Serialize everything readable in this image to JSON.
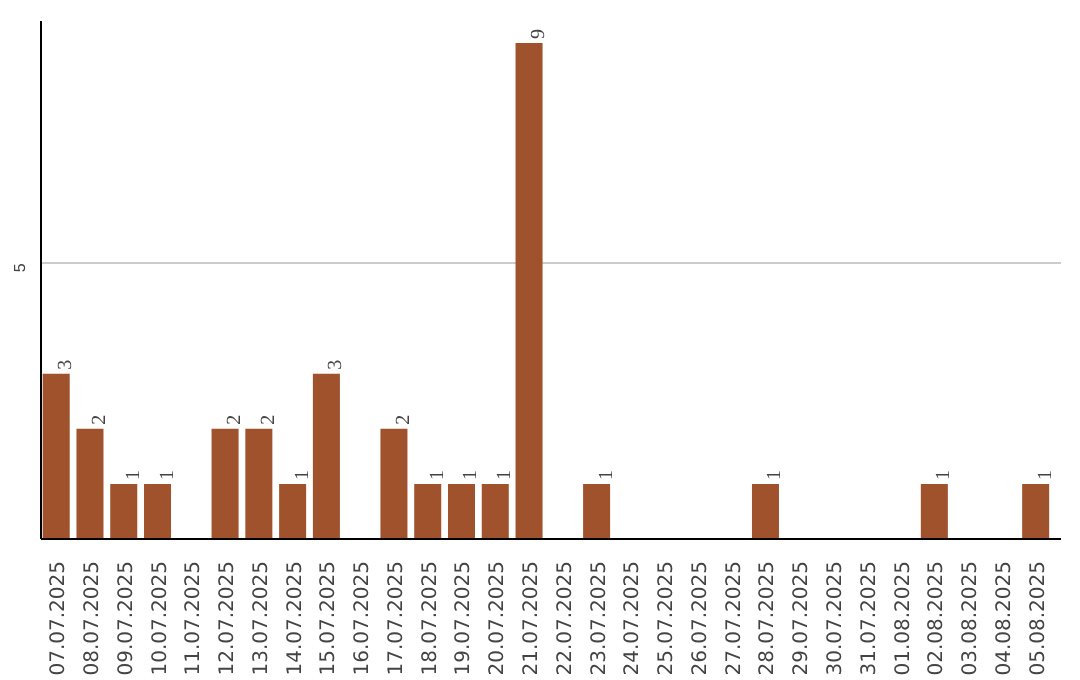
{
  "chart_data": {
    "type": "bar",
    "categories": [
      "07.07.2025",
      "08.07.2025",
      "09.07.2025",
      "10.07.2025",
      "11.07.2025",
      "12.07.2025",
      "13.07.2025",
      "14.07.2025",
      "15.07.2025",
      "16.07.2025",
      "17.07.2025",
      "18.07.2025",
      "19.07.2025",
      "20.07.2025",
      "21.07.2025",
      "22.07.2025",
      "23.07.2025",
      "24.07.2025",
      "25.07.2025",
      "26.07.2025",
      "27.07.2025",
      "28.07.2025",
      "29.07.2025",
      "30.07.2025",
      "31.07.2025",
      "01.08.2025",
      "02.08.2025",
      "03.08.2025",
      "04.08.2025",
      "05.08.2025"
    ],
    "values": [
      3,
      2,
      1,
      1,
      0,
      2,
      2,
      1,
      3,
      0,
      2,
      1,
      1,
      1,
      9,
      0,
      1,
      0,
      0,
      0,
      0,
      1,
      0,
      0,
      0,
      0,
      1,
      0,
      0,
      1
    ],
    "value_labels": [
      "3",
      "2",
      "1",
      "1",
      null,
      "2",
      "2",
      "1",
      "3",
      null,
      "2",
      "1",
      "1",
      "1",
      "9",
      null,
      "1",
      null,
      null,
      null,
      null,
      "1",
      null,
      null,
      null,
      null,
      "1",
      null,
      null,
      "1"
    ],
    "color": "#a0522d",
    "ylim": [
      0,
      9.4
    ],
    "yticks": [
      5
    ],
    "grid": "y"
  }
}
